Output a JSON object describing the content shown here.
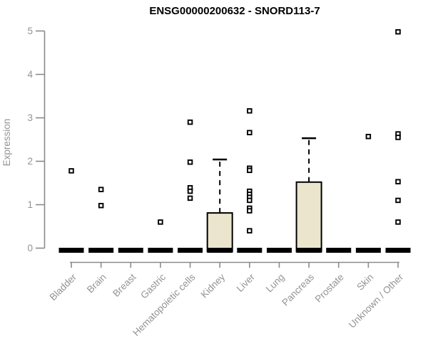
{
  "title": "ENSG00000200632 - SNORD113-7",
  "chart_data": {
    "type": "box",
    "title": "ENSG00000200632 - SNORD113-7",
    "xlabel": "",
    "ylabel": "Expression",
    "ylim": [
      0,
      5
    ],
    "yticks": [
      0,
      1,
      2,
      3,
      4,
      5
    ],
    "grid": false,
    "legend": "none",
    "categories": [
      "Bladder",
      "Brain",
      "Breast",
      "Gastric",
      "Hematopoietic cells",
      "Kidney",
      "Liver",
      "Lung",
      "Pancreas",
      "Prostate",
      "Skin",
      "Unknown / Other"
    ],
    "boxes": [
      {
        "category": "Bladder",
        "min": 0,
        "q1": 0,
        "median": 0,
        "q3": 0,
        "max": 0,
        "outliers": [
          1.78
        ]
      },
      {
        "category": "Brain",
        "min": 0,
        "q1": 0,
        "median": 0,
        "q3": 0,
        "max": 0,
        "outliers": [
          1.35,
          0.98
        ]
      },
      {
        "category": "Breast",
        "min": 0,
        "q1": 0,
        "median": 0,
        "q3": 0,
        "max": 0,
        "outliers": []
      },
      {
        "category": "Gastric",
        "min": 0,
        "q1": 0,
        "median": 0,
        "q3": 0,
        "max": 0,
        "outliers": [
          0.6
        ]
      },
      {
        "category": "Hematopoietic cells",
        "min": 0,
        "q1": 0,
        "median": 0,
        "q3": 0,
        "max": 0,
        "outliers": [
          2.9,
          1.98,
          1.39,
          1.31,
          1.15
        ]
      },
      {
        "category": "Kidney",
        "min": 0,
        "q1": 0,
        "median": 0,
        "q3": 0.81,
        "max": 2.04,
        "outliers": []
      },
      {
        "category": "Liver",
        "min": 0,
        "q1": 0,
        "median": 0,
        "q3": 0,
        "max": 0,
        "outliers": [
          3.16,
          2.66,
          1.84,
          1.79,
          1.31,
          1.24,
          1.17,
          1.1,
          0.92,
          0.86,
          0.4
        ]
      },
      {
        "category": "Lung",
        "min": 0,
        "q1": 0,
        "median": 0,
        "q3": 0,
        "max": 0,
        "outliers": []
      },
      {
        "category": "Pancreas",
        "min": 0,
        "q1": 0,
        "median": 0,
        "q3": 1.52,
        "max": 2.53,
        "outliers": []
      },
      {
        "category": "Prostate",
        "min": 0,
        "q1": 0,
        "median": 0,
        "q3": 0,
        "max": 0,
        "outliers": []
      },
      {
        "category": "Skin",
        "min": 0,
        "q1": 0,
        "median": 0,
        "q3": 0,
        "max": 0,
        "outliers": [
          2.57
        ]
      },
      {
        "category": "Unknown / Other",
        "min": 0,
        "q1": 0,
        "median": 0,
        "q3": 0,
        "max": 0,
        "outliers": [
          4.98,
          2.63,
          2.55,
          1.53,
          1.1,
          0.6
        ]
      }
    ],
    "colors": {
      "box_fill": "#EBE5CD",
      "box_border": "#000000",
      "median": "#000000",
      "whisker": "#000000",
      "outlier_stroke": "#000000",
      "outlier_fill": "#FFFFFF",
      "axis": "#8B8B8B",
      "tick_label": "#939393",
      "title": "#000000",
      "background": "#FFFFFF"
    }
  }
}
